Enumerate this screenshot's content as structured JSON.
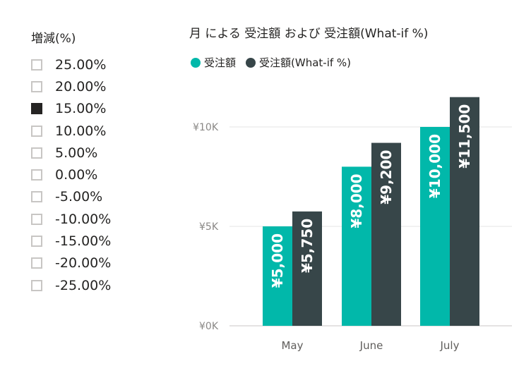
{
  "slicer": {
    "title": "増減(%)",
    "items": [
      {
        "label": "25.00%",
        "checked": false
      },
      {
        "label": "20.00%",
        "checked": false
      },
      {
        "label": "15.00%",
        "checked": true
      },
      {
        "label": "10.00%",
        "checked": false
      },
      {
        "label": "5.00%",
        "checked": false
      },
      {
        "label": "0.00%",
        "checked": false
      },
      {
        "label": "-5.00%",
        "checked": false
      },
      {
        "label": "-10.00%",
        "checked": false
      },
      {
        "label": "-15.00%",
        "checked": false
      },
      {
        "label": "-20.00%",
        "checked": false
      },
      {
        "label": "-25.00%",
        "checked": false
      }
    ]
  },
  "chart_data": {
    "type": "bar",
    "title": "月 による 受注額 および 受注額(What-if %)",
    "categories": [
      "May",
      "June",
      "July"
    ],
    "series": [
      {
        "name": "受注額",
        "color": "#01b8aa",
        "values": [
          5000,
          8000,
          10000
        ],
        "labels": [
          "¥5,000",
          "¥8,000",
          "¥10,000"
        ]
      },
      {
        "name": "受注額(What-if %)",
        "color": "#374649",
        "values": [
          5750,
          9200,
          11500
        ],
        "labels": [
          "¥5,750",
          "¥9,200",
          "¥11,500"
        ]
      }
    ],
    "yticks": [
      {
        "value": 0,
        "label": "¥0K"
      },
      {
        "value": 5000,
        "label": "¥5K"
      },
      {
        "value": 10000,
        "label": "¥10K"
      }
    ],
    "ylim": [
      0,
      11500
    ],
    "xlabel": "",
    "ylabel": "",
    "grid": true,
    "legend_position": "top-left"
  }
}
